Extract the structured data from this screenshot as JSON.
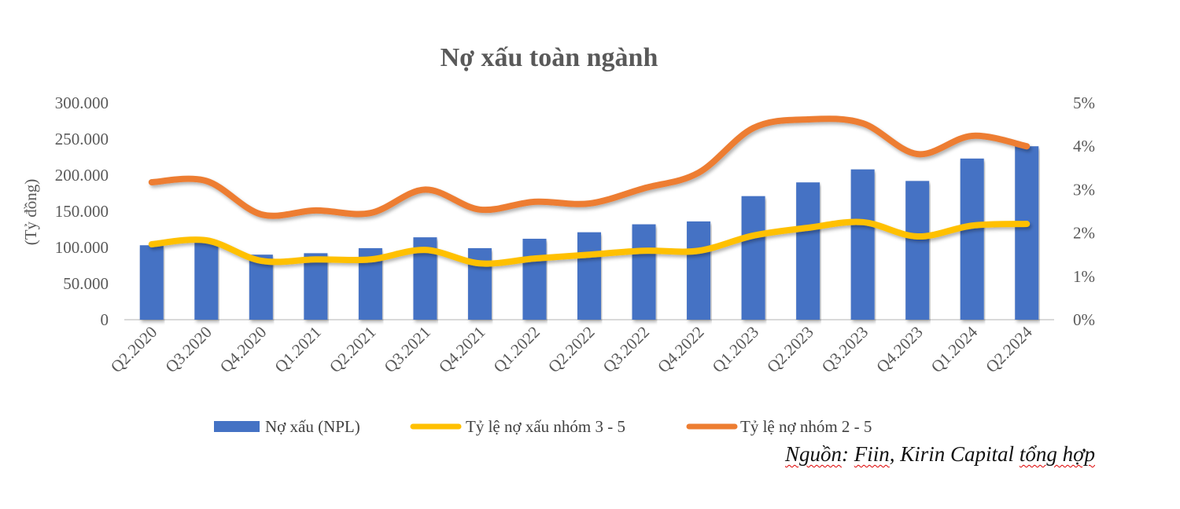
{
  "chart_data": {
    "type": "bar+line",
    "title": "Nợ xấu toàn ngành",
    "ylabel": "(Tỷ đồng)",
    "y_left": {
      "range": [
        0,
        300000
      ],
      "ticks": [
        "0",
        "50.000",
        "100.000",
        "150.000",
        "200.000",
        "250.000",
        "300.000"
      ]
    },
    "y_right": {
      "range": [
        0,
        5
      ],
      "unit": "%",
      "ticks": [
        "0%",
        "1%",
        "2%",
        "3%",
        "4%",
        "5%"
      ]
    },
    "categories": [
      "Q2.2020",
      "Q3.2020",
      "Q4.2020",
      "Q1.2021",
      "Q2.2021",
      "Q3.2021",
      "Q4.2021",
      "Q1.2022",
      "Q2.2022",
      "Q3.2022",
      "Q4.2022",
      "Q1.2023",
      "Q2.2023",
      "Q3.2023",
      "Q4.2023",
      "Q1.2024",
      "Q2.2024"
    ],
    "series": [
      {
        "name": "Nợ xấu (NPL)",
        "type": "bar",
        "axis": "left",
        "color": "#4472C4",
        "values": [
          103000,
          108000,
          90000,
          92000,
          99000,
          114000,
          99000,
          112000,
          121000,
          132000,
          136000,
          171000,
          190000,
          208000,
          192000,
          223000,
          240000
        ]
      },
      {
        "name": "Tỷ lệ nợ xấu nhóm 3 - 5",
        "type": "line",
        "axis": "right",
        "color": "#FFC000",
        "values": [
          1.74,
          1.83,
          1.36,
          1.39,
          1.39,
          1.61,
          1.3,
          1.41,
          1.5,
          1.59,
          1.59,
          1.94,
          2.12,
          2.25,
          1.92,
          2.17,
          2.21
        ]
      },
      {
        "name": "Tỷ lệ nợ nhóm 2 - 5",
        "type": "line",
        "axis": "right",
        "color": "#ED7D31",
        "values": [
          3.17,
          3.2,
          2.43,
          2.52,
          2.46,
          3.0,
          2.54,
          2.72,
          2.68,
          3.03,
          3.39,
          4.42,
          4.62,
          4.53,
          3.82,
          4.24,
          4.0
        ]
      }
    ],
    "legend": "bottom",
    "grid": false
  },
  "source": {
    "prefix": "Nguồn",
    "sep": ": ",
    "fiin": "Fiin",
    "mid": ", Kirin Capital ",
    "suffix": "tổng hợp"
  }
}
